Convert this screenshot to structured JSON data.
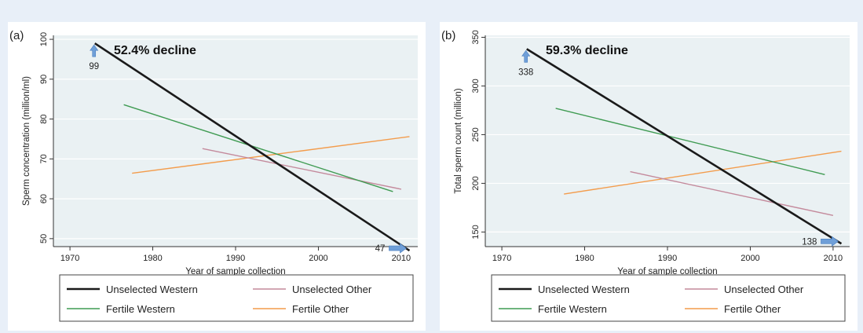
{
  "chart_data": [
    {
      "type": "line",
      "panel_label": "(a)",
      "annotation": "52.4% decline",
      "xlabel": "Year of sample collection",
      "ylabel": "Sperm concentration (million/ml)",
      "xlim": [
        1968,
        2012
      ],
      "ylim": [
        48,
        101
      ],
      "x_ticks": [
        1970,
        1980,
        1990,
        2000,
        2010
      ],
      "y_ticks": [
        50,
        60,
        70,
        80,
        90,
        100
      ],
      "grid": true,
      "legend_position": "bottom",
      "series": [
        {
          "name": "Unselected Western",
          "color": "#1a1a1a",
          "x": [
            1973,
            2011
          ],
          "y": [
            99,
            47
          ]
        },
        {
          "name": "Unselected Other",
          "color": "#c48a9c",
          "x": [
            1986,
            2010
          ],
          "y": [
            72.6,
            62.4
          ]
        },
        {
          "name": "Fertile Western",
          "color": "#3f9b52",
          "x": [
            1976.5,
            2009
          ],
          "y": [
            83.6,
            61.8
          ]
        },
        {
          "name": "Fertile Other",
          "color": "#f39c4c",
          "x": [
            1977.5,
            2011
          ],
          "y": [
            66.4,
            75.6
          ]
        }
      ],
      "data_labels": [
        {
          "text": "99",
          "x": 1973,
          "y": 99,
          "arrow": "up"
        },
        {
          "text": "47",
          "x": 2011,
          "y": 47,
          "arrow": "right"
        }
      ]
    },
    {
      "type": "line",
      "panel_label": "(b)",
      "annotation": "59.3% decline",
      "xlabel": "Year of sample collection",
      "ylabel": "Total sperm count (million)",
      "xlim": [
        1968,
        2012
      ],
      "ylim": [
        135,
        352
      ],
      "x_ticks": [
        1970,
        1980,
        1990,
        2000,
        2010
      ],
      "y_ticks": [
        150,
        200,
        250,
        300,
        350
      ],
      "grid": true,
      "legend_position": "bottom",
      "series": [
        {
          "name": "Unselected Western",
          "color": "#1a1a1a",
          "x": [
            1973,
            2011
          ],
          "y": [
            338,
            138
          ]
        },
        {
          "name": "Unselected Other",
          "color": "#c48a9c",
          "x": [
            1985.5,
            2010
          ],
          "y": [
            212,
            167
          ]
        },
        {
          "name": "Fertile Western",
          "color": "#3f9b52",
          "x": [
            1976.5,
            2009
          ],
          "y": [
            277,
            209
          ]
        },
        {
          "name": "Fertile Other",
          "color": "#f39c4c",
          "x": [
            1977.5,
            2011
          ],
          "y": [
            189,
            233
          ]
        }
      ],
      "data_labels": [
        {
          "text": "338",
          "x": 1973,
          "y": 338,
          "arrow": "up"
        },
        {
          "text": "138",
          "x": 2011,
          "y": 138,
          "arrow": "right"
        }
      ]
    }
  ]
}
